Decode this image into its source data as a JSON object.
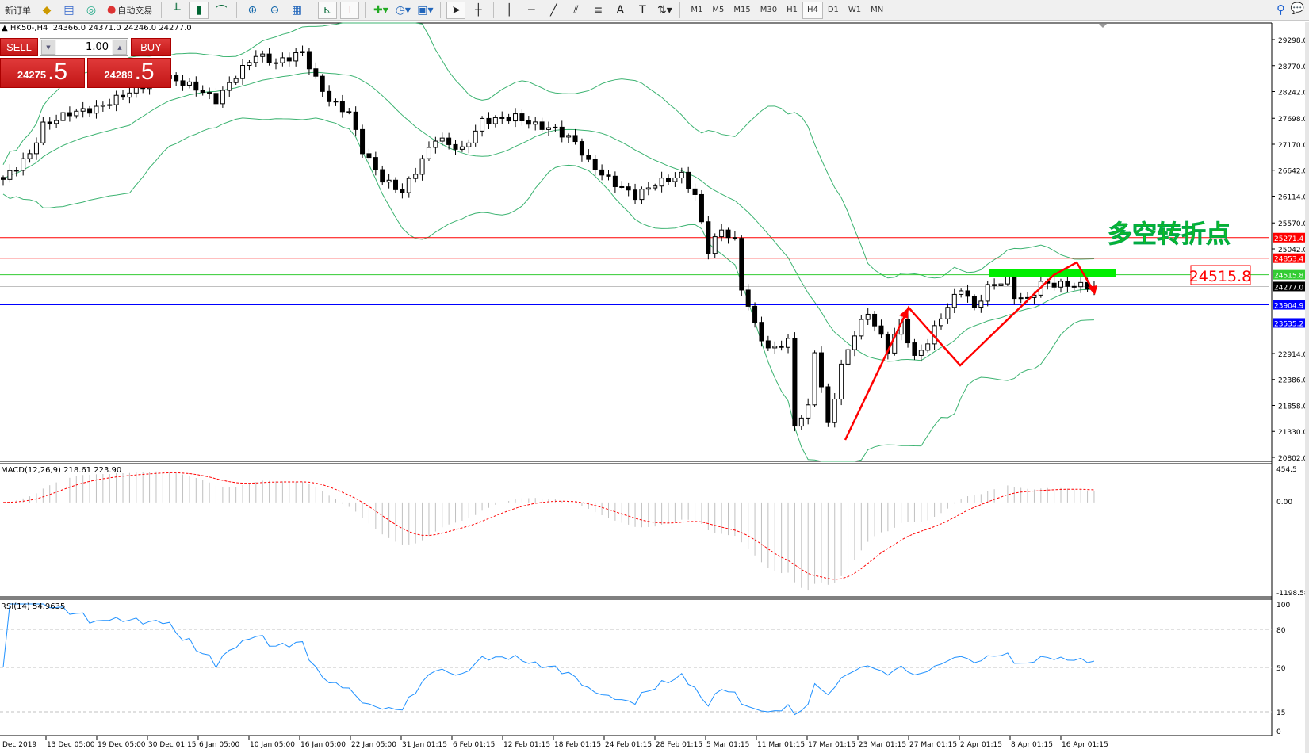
{
  "toolbar": {
    "new_order": "新订单",
    "auto_trading": "自动交易",
    "icons": [
      "market-watch-icon",
      "data-window-icon",
      "signal-icon",
      "bar-chart-icon",
      "candlestick-icon",
      "line-chart-icon",
      "zoom-in-icon",
      "zoom-out-icon",
      "tile-windows-icon",
      "autoscroll-icon",
      "chart-shift-icon",
      "indicators-icon",
      "periods-icon",
      "templates-icon",
      "cursor-icon",
      "crosshair-icon",
      "vertical-line-icon",
      "horizontal-line-icon",
      "trendline-icon",
      "equidistant-channel-icon",
      "fibonacci-icon",
      "text-icon",
      "text-label-icon",
      "arrows-icon"
    ],
    "timeframes": [
      "M1",
      "M5",
      "M15",
      "M30",
      "H1",
      "H4",
      "D1",
      "W1",
      "MN"
    ],
    "active_timeframe": "H4"
  },
  "chart_header": {
    "symbol": "HK50-,H4",
    "ohlc": "24366.0 24371.0 24246.0 24277.0"
  },
  "one_click": {
    "sell_label": "SELL",
    "buy_label": "BUY",
    "lot": "1.00",
    "sell_price_main": "24275",
    "sell_price_big": ".5",
    "buy_price_main": "24289",
    "buy_price_big": ".5"
  },
  "price_axis": {
    "labels": [
      "29298.0",
      "28770.0",
      "28242.0",
      "27698.0",
      "27170.0",
      "26642.0",
      "26114.0",
      "25570.0",
      "25042.0",
      "22914.0",
      "22386.0",
      "21858.0",
      "21330.0",
      "20802.0"
    ],
    "min": 20802.0,
    "max": 29298.0
  },
  "levels": [
    {
      "price": 25271.4,
      "label": "25271.4",
      "color": "#ff0000"
    },
    {
      "price": 24853.4,
      "label": "24853.4",
      "color": "#ff0000"
    },
    {
      "price": 24515.8,
      "label": "24515.8",
      "color": "#33cc33"
    },
    {
      "price": 24277.0,
      "label": "24277.0",
      "color": "#000000",
      "line": "#c0c0c0"
    },
    {
      "price": 23904.9,
      "label": "23904.9",
      "color": "#0000ff"
    },
    {
      "price": 23535.2,
      "label": "23535.2",
      "color": "#0000ff"
    }
  ],
  "annotation": {
    "text": "多空转折点",
    "price_label": "24515.8",
    "text_color": "#22cc00",
    "arrow_color": "#ff0000",
    "zone_color": "#00ee00"
  },
  "candles": {
    "count": 165,
    "close_keypoints": [
      [
        0,
        26455
      ],
      [
        4,
        26963
      ],
      [
        6,
        27555
      ],
      [
        10,
        27810
      ],
      [
        14,
        27894
      ],
      [
        19,
        28232
      ],
      [
        24,
        28570
      ],
      [
        29,
        28317
      ],
      [
        32,
        28063
      ],
      [
        35,
        28570
      ],
      [
        38,
        28993
      ],
      [
        41,
        28824
      ],
      [
        45,
        29044
      ],
      [
        47,
        28486
      ],
      [
        49,
        28063
      ],
      [
        52,
        27810
      ],
      [
        54,
        27048
      ],
      [
        57,
        26455
      ],
      [
        60,
        26201
      ],
      [
        62,
        26625
      ],
      [
        65,
        27301
      ],
      [
        69,
        27048
      ],
      [
        72,
        27640
      ],
      [
        77,
        27725
      ],
      [
        80,
        27555
      ],
      [
        83,
        27471
      ],
      [
        86,
        27217
      ],
      [
        88,
        26794
      ],
      [
        91,
        26455
      ],
      [
        95,
        26117
      ],
      [
        98,
        26370
      ],
      [
        102,
        26540
      ],
      [
        104,
        26117
      ],
      [
        106,
        25017
      ],
      [
        108,
        25441
      ],
      [
        110,
        25187
      ],
      [
        111,
        24256
      ],
      [
        113,
        23495
      ],
      [
        115,
        22988
      ],
      [
        118,
        23157
      ],
      [
        119,
        21464
      ],
      [
        121,
        21802
      ],
      [
        122,
        22988
      ],
      [
        124,
        21464
      ],
      [
        126,
        22649
      ],
      [
        128,
        23326
      ],
      [
        130,
        23749
      ],
      [
        133,
        22988
      ],
      [
        135,
        23580
      ],
      [
        137,
        22818
      ],
      [
        139,
        23157
      ],
      [
        141,
        23664
      ],
      [
        144,
        24256
      ],
      [
        146,
        23833
      ],
      [
        148,
        24256
      ],
      [
        151,
        24425
      ],
      [
        152,
        24087
      ],
      [
        154,
        24002
      ],
      [
        156,
        24340
      ],
      [
        164,
        24277
      ]
    ]
  },
  "indicators": {
    "bollinger_color": "#3cb371",
    "macd": {
      "label": "MACD(12,26,9) 218.61 223.90",
      "axis": [
        "454.5",
        "0.00",
        "-1198.58"
      ],
      "max": 454.5,
      "min": -1198.58,
      "signal_color": "#ff0000",
      "hist_color": "#c0c0c0"
    },
    "rsi": {
      "label": "RSI(14) 54.9635",
      "axis": [
        "100",
        "80",
        "50",
        "15",
        "0"
      ],
      "line_color": "#1e90ff"
    }
  },
  "time_axis": [
    "Dec 2019",
    "13 Dec 05:00",
    "19 Dec 05:00",
    "30 Dec 01:15",
    "6 Jan 05:00",
    "10 Jan 05:00",
    "16 Jan 05:00",
    "22 Jan 05:00",
    "31 Jan 01:15",
    "6 Feb 01:15",
    "12 Feb 01:15",
    "18 Feb 01:15",
    "24 Feb 01:15",
    "28 Feb 01:15",
    "5 Mar 01:15",
    "11 Mar 01:15",
    "17 Mar 01:15",
    "23 Mar 01:15",
    "27 Mar 01:15",
    "2 Apr 01:15",
    "8 Apr 01:15",
    "16 Apr 01:15"
  ]
}
